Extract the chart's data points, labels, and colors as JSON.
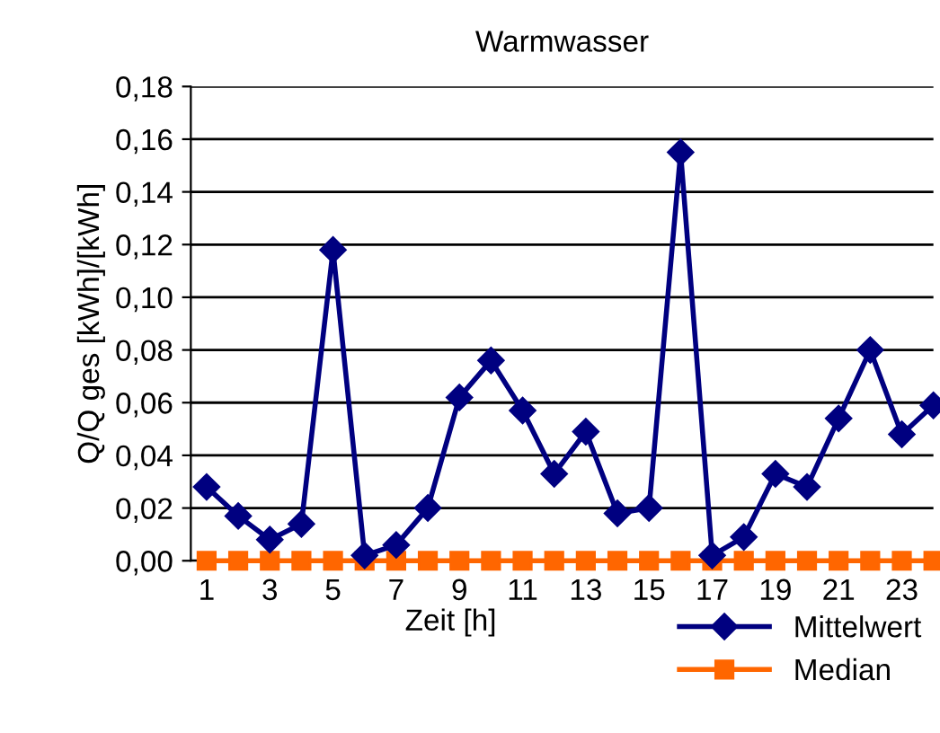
{
  "chart_data": {
    "type": "line",
    "title": "Warmwasser",
    "xlabel": "Zeit [h]",
    "ylabel": "Q/Q ges [kWh]/[kWh]",
    "categories": [
      "1",
      null,
      "3",
      null,
      "5",
      null,
      "7",
      null,
      "9",
      null,
      "11",
      null,
      "13",
      null,
      "15",
      null,
      "17",
      null,
      "19",
      null,
      "21",
      null,
      "23",
      null
    ],
    "series": [
      {
        "name": "Mittelwert",
        "color": "#000080",
        "marker": "diamond",
        "values": [
          0.028,
          0.017,
          0.008,
          0.014,
          0.118,
          0.002,
          0.006,
          0.02,
          0.062,
          0.076,
          0.057,
          0.033,
          0.049,
          0.018,
          0.02,
          0.155,
          0.002,
          0.009,
          0.033,
          0.028,
          0.054,
          0.08,
          0.048,
          0.059
        ]
      },
      {
        "name": "Median",
        "color": "#ff6600",
        "marker": "square",
        "values": [
          0,
          0,
          0,
          0,
          0,
          0,
          0,
          0,
          0,
          0,
          0,
          0,
          0,
          0,
          0,
          0,
          0,
          0,
          0,
          0,
          0,
          0,
          0,
          0
        ]
      }
    ],
    "ylim": [
      0,
      0.18
    ],
    "yticks": [
      {
        "value": 0,
        "label": "0,00"
      },
      {
        "value": 0.02,
        "label": "0,02"
      },
      {
        "value": 0.04,
        "label": "0,04"
      },
      {
        "value": 0.06,
        "label": "0,06"
      },
      {
        "value": 0.08,
        "label": "0,08"
      },
      {
        "value": 0.1,
        "label": "0,10"
      },
      {
        "value": 0.12,
        "label": "0,12"
      },
      {
        "value": 0.14,
        "label": "0,14"
      },
      {
        "value": 0.16,
        "label": "0,16"
      },
      {
        "value": 0.18,
        "label": "0,18"
      }
    ],
    "grid": "y",
    "legend": "bottom right"
  }
}
